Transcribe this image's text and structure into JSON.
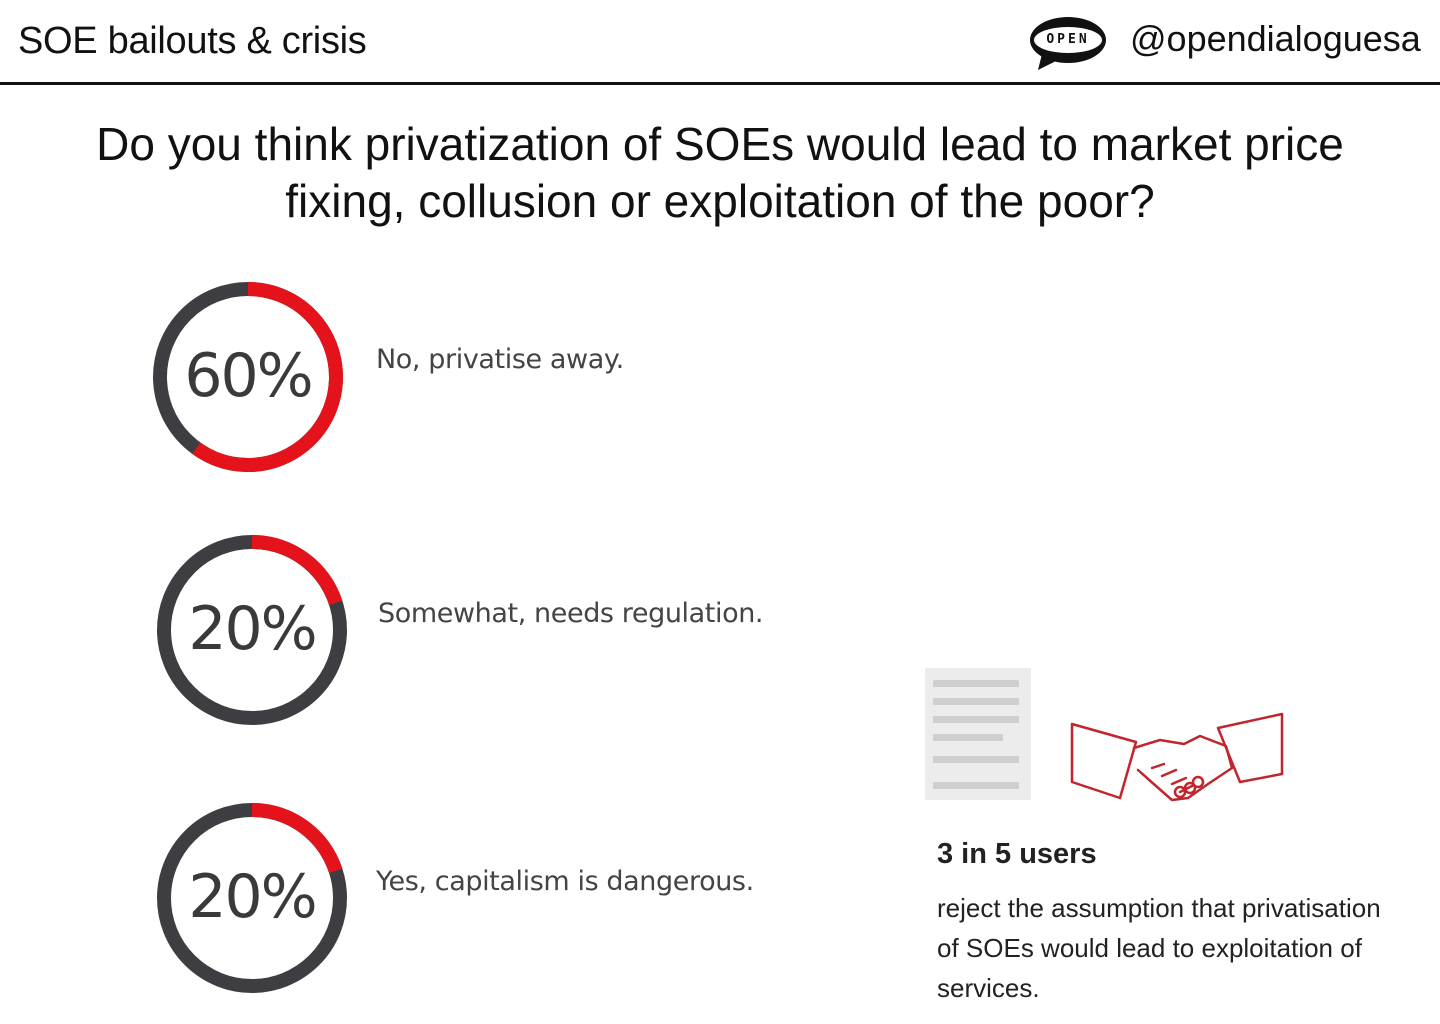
{
  "header": {
    "title": "SOE bailouts & crisis",
    "logo_text": "OPEN",
    "handle": "@opendialoguesa"
  },
  "question": "Do you think privatization of SOEs would lead to market price fixing, collusion or exploitation of the poor?",
  "colors": {
    "accent": "#e3121b",
    "track": "#3e3e42",
    "text": "#111111"
  },
  "chart_data": {
    "type": "pie",
    "categories": [
      "No, privatise away.",
      "Somewhat, needs regulation.",
      "Yes, capitalism is dangerous."
    ],
    "values": [
      60,
      20,
      20
    ],
    "labels": [
      "60%",
      "20%",
      "20%"
    ],
    "title": "",
    "xlabel": "",
    "ylabel": ""
  },
  "stat": {
    "headline": "3 in 5 users",
    "body": "reject the assumption that privatisation of SOEs would lead to exploitation of services."
  },
  "icons": [
    "document-icon",
    "handshake-icon"
  ]
}
